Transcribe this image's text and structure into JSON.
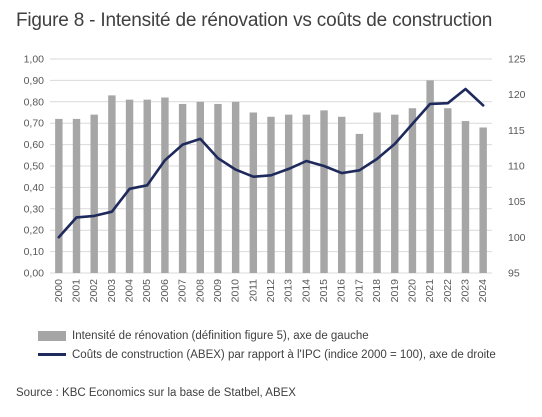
{
  "title": "Figure 8 - Intensité de rénovation vs coûts de construction",
  "source": "Source : KBC Economics sur la base de Statbel, ABEX",
  "colors": {
    "bars": "#a6a6a6",
    "line": "#1f2a5c",
    "grid": "#d9d9d9"
  },
  "chart_data": {
    "type": "bar+line",
    "categories": [
      "2000",
      "2001",
      "2002",
      "2003",
      "2004",
      "2005",
      "2006",
      "2007",
      "2008",
      "2009",
      "2010",
      "2011",
      "2012",
      "2013",
      "2014",
      "2015",
      "2016",
      "2017",
      "2018",
      "2019",
      "2020",
      "2021",
      "2022",
      "2023",
      "2024"
    ],
    "left_axis": {
      "ylim": [
        0,
        1.0
      ],
      "ticks": [
        "0,00",
        "0,10",
        "0,20",
        "0,30",
        "0,40",
        "0,50",
        "0,60",
        "0,70",
        "0,80",
        "0,90",
        "1,00"
      ]
    },
    "right_axis": {
      "ylim": [
        95,
        125
      ],
      "ticks": [
        "95",
        "100",
        "105",
        "110",
        "115",
        "120",
        "125"
      ]
    },
    "grid": true,
    "legend_position": "bottom",
    "series": [
      {
        "name": "Intensité de rénovation (définition figure 5), axe de gauche",
        "kind": "bar",
        "axis": "left",
        "values": [
          0.72,
          0.72,
          0.74,
          0.83,
          0.81,
          0.81,
          0.82,
          0.79,
          0.8,
          0.79,
          0.8,
          0.75,
          0.73,
          0.74,
          0.74,
          0.76,
          0.73,
          0.65,
          0.75,
          0.74,
          0.77,
          0.9,
          0.77,
          0.71,
          0.68
        ]
      },
      {
        "name": "Coûts de construction (ABEX) par rapport à l'IPC (indice 2000 = 100), axe de droite",
        "kind": "line",
        "axis": "right",
        "values": [
          100.0,
          102.8,
          103.0,
          103.6,
          106.8,
          107.3,
          110.8,
          113.0,
          113.8,
          111.1,
          109.5,
          108.5,
          108.7,
          109.6,
          110.7,
          110.0,
          109.0,
          109.4,
          111.0,
          113.1,
          115.9,
          118.7,
          118.8,
          120.8,
          118.5
        ]
      }
    ]
  }
}
